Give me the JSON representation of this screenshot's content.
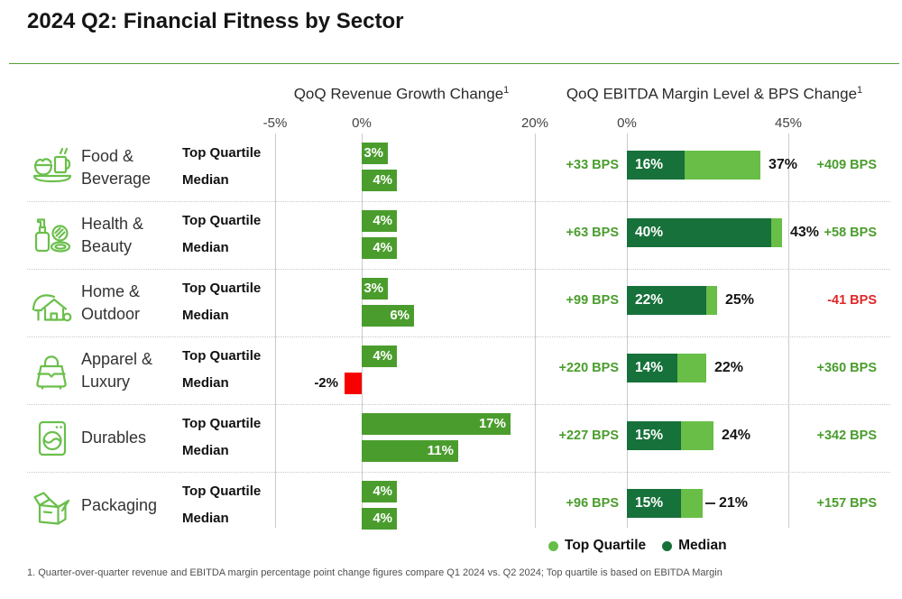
{
  "title": "2024 Q2: Financial Fitness by Sector",
  "charts": {
    "left": {
      "title": "QoQ Revenue Growth Change",
      "sup": "1",
      "ticks": [
        "-5%",
        "0%",
        "20%"
      ]
    },
    "right": {
      "title": "QoQ EBITDA Margin Level & BPS Change",
      "sup": "1",
      "ticks": [
        "0%",
        "45%"
      ]
    }
  },
  "row_labels": {
    "top_quartile": "Top Quartile",
    "median": "Median"
  },
  "legend": [
    {
      "label": "Top Quartile",
      "color": "#68be46"
    },
    {
      "label": "Median",
      "color": "#17713a"
    }
  ],
  "footnote": "1. Quarter-over-quarter revenue and EBITDA margin percentage point change figures compare Q1 2024 vs. Q2 2024; Top quartile is based on EBITDA Margin",
  "colors": {
    "revenue_bar": "#4a9d2d",
    "negative_bar": "#f90000",
    "ebitda_median_bar": "#17713a",
    "ebitda_top_quartile_bar": "#68be46",
    "bps_positive_text": "#4a9d2d",
    "bps_negative_text": "#e02728",
    "icon_green": "#6abf4b",
    "rule_green": "#55a038"
  },
  "sectors": [
    {
      "name": "Food & Beverage",
      "name_lines": [
        "Food &",
        "Beverage"
      ],
      "icon": "food-beverage-icon",
      "icon_key": "food-beverage",
      "revenue": {
        "top_quartile": {
          "value": 3,
          "label": "3%"
        },
        "median": {
          "value": 4,
          "label": "4%"
        }
      },
      "ebitda": {
        "median": {
          "value": 16,
          "label": "16%"
        },
        "top_quartile": {
          "value": 37,
          "label": "37%"
        },
        "median_bps": "+33 BPS",
        "top_quartile_bps": "+409 BPS",
        "top_quartile_bps_negative": false,
        "leader_line": false
      }
    },
    {
      "name": "Health & Beauty",
      "name_lines": [
        "Health &",
        "Beauty"
      ],
      "icon": "health-beauty-icon",
      "icon_key": "health-beauty",
      "revenue": {
        "top_quartile": {
          "value": 4,
          "label": "4%"
        },
        "median": {
          "value": 4,
          "label": "4%"
        }
      },
      "ebitda": {
        "median": {
          "value": 40,
          "label": "40%"
        },
        "top_quartile": {
          "value": 43,
          "label": "43%"
        },
        "median_bps": "+63 BPS",
        "top_quartile_bps": "+58 BPS",
        "top_quartile_bps_negative": false,
        "leader_line": false
      }
    },
    {
      "name": "Home & Outdoor",
      "name_lines": [
        "Home &",
        "Outdoor"
      ],
      "icon": "home-outdoor-icon",
      "icon_key": "home-outdoor",
      "revenue": {
        "top_quartile": {
          "value": 3,
          "label": "3%"
        },
        "median": {
          "value": 6,
          "label": "6%"
        }
      },
      "ebitda": {
        "median": {
          "value": 22,
          "label": "22%"
        },
        "top_quartile": {
          "value": 25,
          "label": "25%"
        },
        "median_bps": "+99 BPS",
        "top_quartile_bps": "-41 BPS",
        "top_quartile_bps_negative": true,
        "leader_line": false
      }
    },
    {
      "name": "Apparel & Luxury",
      "name_lines": [
        "Apparel &",
        "Luxury"
      ],
      "icon": "apparel-luxury-icon",
      "icon_key": "apparel-luxury",
      "revenue": {
        "top_quartile": {
          "value": 4,
          "label": "4%"
        },
        "median": {
          "value": -2,
          "label": "-2%"
        }
      },
      "ebitda": {
        "median": {
          "value": 14,
          "label": "14%"
        },
        "top_quartile": {
          "value": 22,
          "label": "22%"
        },
        "median_bps": "+220 BPS",
        "top_quartile_bps": "+360 BPS",
        "top_quartile_bps_negative": false,
        "leader_line": false
      }
    },
    {
      "name": "Durables",
      "name_lines": [
        "Durables"
      ],
      "icon": "durables-icon",
      "icon_key": "durables",
      "revenue": {
        "top_quartile": {
          "value": 17,
          "label": "17%"
        },
        "median": {
          "value": 11,
          "label": "11%"
        }
      },
      "ebitda": {
        "median": {
          "value": 15,
          "label": "15%"
        },
        "top_quartile": {
          "value": 24,
          "label": "24%"
        },
        "median_bps": "+227 BPS",
        "top_quartile_bps": "+342 BPS",
        "top_quartile_bps_negative": false,
        "leader_line": false
      }
    },
    {
      "name": "Packaging",
      "name_lines": [
        "Packaging"
      ],
      "icon": "packaging-icon",
      "icon_key": "packaging",
      "revenue": {
        "top_quartile": {
          "value": 4,
          "label": "4%"
        },
        "median": {
          "value": 4,
          "label": "4%"
        }
      },
      "ebitda": {
        "median": {
          "value": 15,
          "label": "15%"
        },
        "top_quartile": {
          "value": 21,
          "label": "21%"
        },
        "median_bps": "+96 BPS",
        "top_quartile_bps": "+157 BPS",
        "top_quartile_bps_negative": false,
        "leader_line": true
      }
    }
  ],
  "chart_data": [
    {
      "type": "bar",
      "title": "QoQ Revenue Growth Change",
      "orientation": "horizontal",
      "categories": [
        "Food & Beverage",
        "Health & Beauty",
        "Home & Outdoor",
        "Apparel & Luxury",
        "Durables",
        "Packaging"
      ],
      "series": [
        {
          "name": "Top Quartile",
          "values": [
            3,
            4,
            3,
            4,
            17,
            4
          ]
        },
        {
          "name": "Median",
          "values": [
            4,
            4,
            6,
            -2,
            11,
            4
          ]
        }
      ],
      "unit": "%",
      "xlim": [
        -5,
        20
      ],
      "x_ticks": [
        "-5%",
        "0%",
        "20%"
      ],
      "grid": "vertical-lines",
      "negative_color_note": "negative values shown in red"
    },
    {
      "type": "bar",
      "title": "QoQ EBITDA Margin Level & BPS Change",
      "orientation": "horizontal-stacked",
      "categories": [
        "Food & Beverage",
        "Health & Beauty",
        "Home & Outdoor",
        "Apparel & Luxury",
        "Durables",
        "Packaging"
      ],
      "series": [
        {
          "name": "Median EBITDA Margin %",
          "values": [
            16,
            40,
            22,
            14,
            15,
            15
          ]
        },
        {
          "name": "Top Quartile EBITDA Margin %",
          "values": [
            37,
            43,
            25,
            22,
            24,
            21
          ]
        },
        {
          "name": "Median BPS Change",
          "values": [
            "+33 BPS",
            "+63 BPS",
            "+99 BPS",
            "+220 BPS",
            "+227 BPS",
            "+96 BPS"
          ]
        },
        {
          "name": "Top Quartile BPS Change",
          "values": [
            "+409 BPS",
            "+58 BPS",
            "-41 BPS",
            "+360 BPS",
            "+342 BPS",
            "+157 BPS"
          ]
        }
      ],
      "unit": "%",
      "xlim": [
        0,
        45
      ],
      "x_ticks": [
        "0%",
        "45%"
      ],
      "legend_position": "bottom",
      "legend": [
        "Top Quartile",
        "Median"
      ]
    }
  ]
}
